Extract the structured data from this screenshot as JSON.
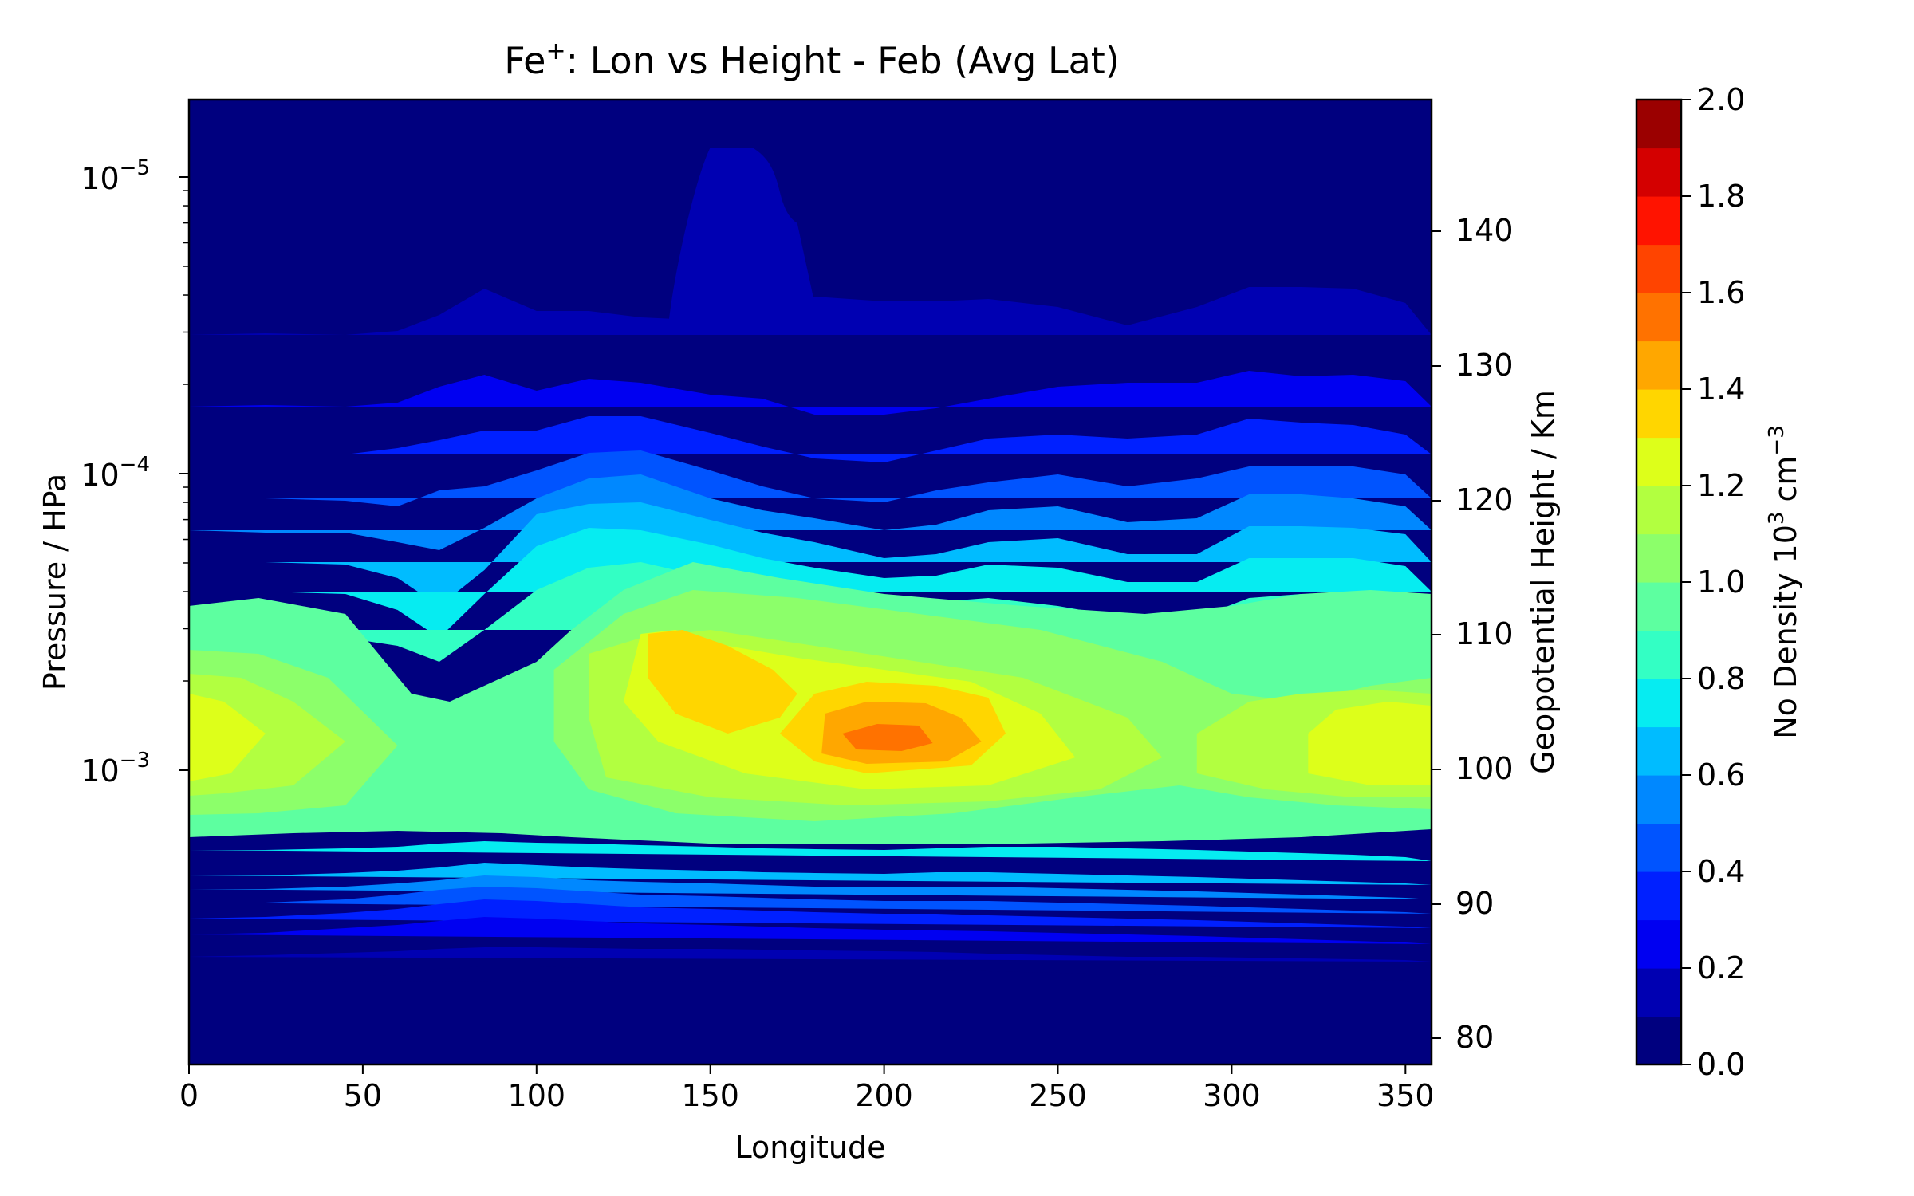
{
  "chart_data": {
    "type": "heatmap",
    "subtype": "filled-contour",
    "title": "Fe⁺: Lon vs Height - Feb (Avg Lat)",
    "title_parts": {
      "main": "Fe",
      "sup": "+",
      "rest": ": Lon vs Height - Feb (Avg Lat)"
    },
    "xlabel": "Longitude",
    "ylabel_left": "Pressure / HPa",
    "ylabel_right": "Geopotential Height / Km",
    "colorbar_label": "No Density 10³ cm⁻³",
    "colorbar_label_parts": {
      "pre": "No Density 10",
      "sup1": "3",
      "mid": " cm",
      "sup2": "−3"
    },
    "xlim": [
      0,
      357.5
    ],
    "x_ticks": [
      0,
      50,
      100,
      150,
      200,
      250,
      300,
      350
    ],
    "x_tick_labels": [
      "0",
      "50",
      "100",
      "150",
      "200",
      "250",
      "300",
      "350"
    ],
    "y_scale": "log",
    "y_decade_ticks": [
      {
        "base": "10",
        "exp": "−5"
      },
      {
        "base": "10",
        "exp": "−4"
      },
      {
        "base": "10",
        "exp": "−3"
      }
    ],
    "height_ticks": [
      "140",
      "130",
      "120",
      "110",
      "100",
      "90",
      "80"
    ],
    "colorbar_ticks": [
      "0.0",
      "0.2",
      "0.4",
      "0.6",
      "0.8",
      "1.0",
      "1.2",
      "1.4",
      "1.6",
      "1.8",
      "2.0"
    ],
    "levels": [
      0.0,
      0.1,
      0.2,
      0.3,
      0.4,
      0.5,
      0.6,
      0.7,
      0.8,
      0.9,
      1.0,
      1.1,
      1.2,
      1.3,
      1.4,
      1.5,
      1.6,
      1.7,
      1.8,
      1.9,
      2.0
    ],
    "level_colors": [
      "#00007f",
      "#0000b2",
      "#0000f1",
      "#0020ff",
      "#0054ff",
      "#0088ff",
      "#00bcff",
      "#06ecf1",
      "#33ffc4",
      "#5dffa0",
      "#8cff6a",
      "#b2ff40",
      "#ddff1a",
      "#ffd600",
      "#ffa700",
      "#ff7200",
      "#ff4400",
      "#ff1300",
      "#d40000",
      "#9b0000"
    ],
    "notes": "Fe+ density maximum near longitude 200, ~100 km (≈1e-3 hPa), values ~1.4-1.5; secondary maxima near 0 and 340 longitude (~1.2-1.3)."
  }
}
